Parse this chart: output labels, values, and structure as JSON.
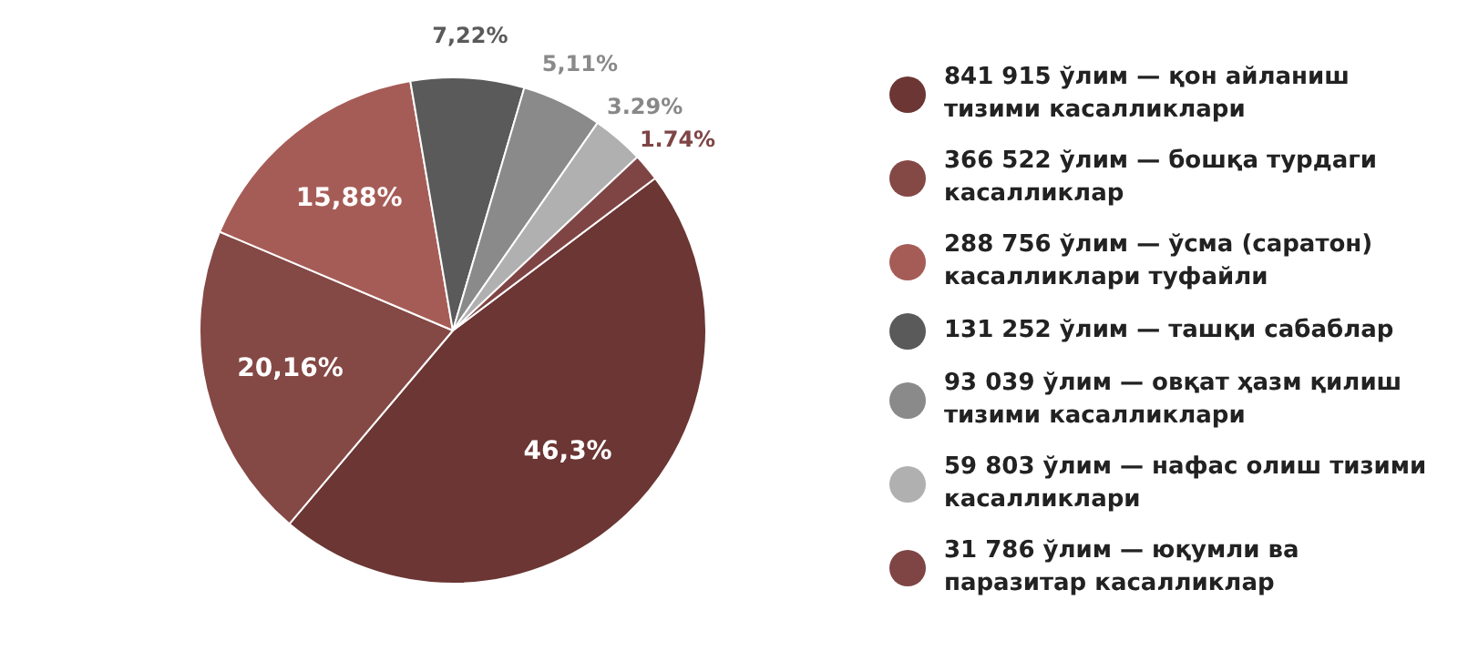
{
  "chart_data": {
    "type": "pie",
    "categories": [
      "841 915 ўлим — қон айланиш тизими касалликлари",
      "366 522 ўлим — бошқа турдаги касалликлар",
      "288 756 ўлим — ўсма (саратон) касалликлари туфайли",
      "131 252 ўлим — ташқи сабаблар",
      "93 039 ўлим — овқат ҳазм қилиш тизими касалликлари",
      "59 803 ўлим — нафас олиш тизими касалликлари",
      "31 786 ўлим — юқумли ва паразитар касалликлар"
    ],
    "values": [
      46.3,
      20.16,
      15.88,
      7.22,
      5.11,
      3.29,
      1.74
    ],
    "value_labels": [
      "46,3%",
      "20,16%",
      "15,88%",
      "7,22%",
      "5,11%",
      "3.29%",
      "1.74%"
    ],
    "colors": [
      "#6b3633",
      "#844845",
      "#a65c56",
      "#5a5a5a",
      "#8a8a8a",
      "#b0b0b0",
      "#7f4545"
    ],
    "legend": "right"
  }
}
